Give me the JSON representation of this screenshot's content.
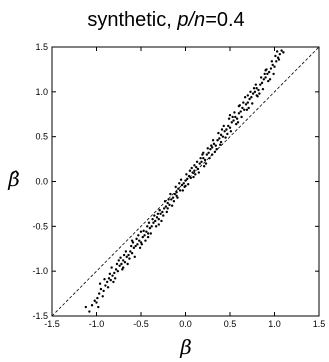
{
  "chart_data": {
    "type": "scatter",
    "title_prefix": "synthetic, ",
    "title_var": "p/n",
    "title_suffix": "=0.4",
    "xlabel": "β",
    "ylabel": "β̂",
    "xlim": [
      -1.5,
      1.5
    ],
    "ylim": [
      -1.5,
      1.5
    ],
    "xticks": [
      -1.5,
      -1.0,
      -0.5,
      0.0,
      0.5,
      1.0,
      1.5
    ],
    "yticks": [
      -1.5,
      -1.0,
      -0.5,
      0.0,
      0.5,
      1.0,
      1.5
    ],
    "xtick_labels": [
      "-1.5",
      "-1.0",
      "-0.5",
      "0.0",
      "0.5",
      "1.0",
      "1.5"
    ],
    "ytick_labels": [
      "-1.5",
      "-1.0",
      "-0.5",
      "0.0",
      "0.5",
      "1.0",
      "1.5"
    ],
    "grid": false,
    "reference_line": {
      "style": "dashed",
      "from": [
        -1.5,
        -1.5
      ],
      "to": [
        1.5,
        1.5
      ]
    },
    "point_color": "#000000",
    "points": [
      [
        -1.08,
        -1.45
      ],
      [
        -1.05,
        -1.38
      ],
      [
        -1.02,
        -1.33
      ],
      [
        -0.99,
        -1.3
      ],
      [
        -0.97,
        -1.25
      ],
      [
        -0.95,
        -1.2
      ],
      [
        -0.92,
        -1.22
      ],
      [
        -0.9,
        -1.16
      ],
      [
        -0.88,
        -1.12
      ],
      [
        -0.86,
        -1.08
      ],
      [
        -0.84,
        -1.1
      ],
      [
        -0.82,
        -1.05
      ],
      [
        -0.8,
        -1.02
      ],
      [
        -0.78,
        -0.98
      ],
      [
        -0.76,
        -1.0
      ],
      [
        -0.74,
        -0.94
      ],
      [
        -0.72,
        -0.92
      ],
      [
        -0.7,
        -0.88
      ],
      [
        -0.68,
        -0.9
      ],
      [
        -0.66,
        -0.84
      ],
      [
        -0.64,
        -0.82
      ],
      [
        -0.62,
        -0.78
      ],
      [
        -0.6,
        -0.8
      ],
      [
        -0.58,
        -0.74
      ],
      [
        -0.56,
        -0.72
      ],
      [
        -0.54,
        -0.7
      ],
      [
        -0.52,
        -0.66
      ],
      [
        -0.5,
        -0.68
      ],
      [
        -0.48,
        -0.62
      ],
      [
        -0.46,
        -0.6
      ],
      [
        -0.44,
        -0.56
      ],
      [
        -0.42,
        -0.58
      ],
      [
        -0.4,
        -0.52
      ],
      [
        -0.38,
        -0.5
      ],
      [
        -0.36,
        -0.46
      ],
      [
        -0.34,
        -0.44
      ],
      [
        -0.32,
        -0.4
      ],
      [
        -0.3,
        -0.42
      ],
      [
        -0.28,
        -0.36
      ],
      [
        -0.26,
        -0.34
      ],
      [
        -0.24,
        -0.3
      ],
      [
        -0.22,
        -0.28
      ],
      [
        -0.2,
        -0.24
      ],
      [
        -0.18,
        -0.26
      ],
      [
        -0.16,
        -0.2
      ],
      [
        -0.14,
        -0.18
      ],
      [
        -0.12,
        -0.14
      ],
      [
        -0.1,
        -0.12
      ],
      [
        -0.08,
        -0.08
      ],
      [
        -0.06,
        -0.1
      ],
      [
        -0.04,
        -0.04
      ],
      [
        -0.02,
        -0.02
      ],
      [
        0.0,
        0.01
      ],
      [
        0.02,
        0.03
      ],
      [
        0.04,
        0.06
      ],
      [
        0.06,
        0.04
      ],
      [
        0.08,
        0.1
      ],
      [
        0.1,
        0.12
      ],
      [
        0.12,
        0.16
      ],
      [
        0.14,
        0.14
      ],
      [
        0.16,
        0.2
      ],
      [
        0.18,
        0.22
      ],
      [
        0.2,
        0.26
      ],
      [
        0.22,
        0.24
      ],
      [
        0.24,
        0.3
      ],
      [
        0.26,
        0.32
      ],
      [
        0.28,
        0.36
      ],
      [
        0.3,
        0.38
      ],
      [
        0.32,
        0.42
      ],
      [
        0.34,
        0.4
      ],
      [
        0.36,
        0.46
      ],
      [
        0.38,
        0.48
      ],
      [
        0.4,
        0.52
      ],
      [
        0.42,
        0.5
      ],
      [
        0.44,
        0.56
      ],
      [
        0.46,
        0.58
      ],
      [
        0.48,
        0.62
      ],
      [
        0.5,
        0.6
      ],
      [
        0.52,
        0.66
      ],
      [
        0.54,
        0.68
      ],
      [
        0.56,
        0.72
      ],
      [
        0.58,
        0.7
      ],
      [
        0.6,
        0.76
      ],
      [
        0.62,
        0.78
      ],
      [
        0.64,
        0.82
      ],
      [
        0.66,
        0.8
      ],
      [
        0.68,
        0.86
      ],
      [
        0.7,
        0.88
      ],
      [
        0.72,
        0.92
      ],
      [
        0.74,
        0.94
      ],
      [
        0.76,
        0.98
      ],
      [
        0.78,
        1.0
      ],
      [
        0.8,
        1.04
      ],
      [
        0.82,
        1.02
      ],
      [
        0.84,
        1.08
      ],
      [
        0.86,
        1.1
      ],
      [
        0.88,
        1.14
      ],
      [
        0.9,
        1.16
      ],
      [
        0.92,
        1.2
      ],
      [
        0.94,
        1.22
      ],
      [
        0.96,
        1.26
      ],
      [
        0.98,
        1.3
      ],
      [
        1.0,
        1.28
      ],
      [
        1.02,
        1.34
      ],
      [
        1.04,
        1.38
      ],
      [
        1.06,
        1.42
      ],
      [
        1.08,
        1.46
      ],
      [
        1.1,
        1.44
      ],
      [
        -0.98,
        -1.4
      ],
      [
        -0.93,
        -1.28
      ],
      [
        -0.87,
        -1.18
      ],
      [
        -0.85,
        -1.03
      ],
      [
        -0.79,
        -1.08
      ],
      [
        -0.75,
        -0.88
      ],
      [
        -0.71,
        -0.98
      ],
      [
        -0.69,
        -0.82
      ],
      [
        -0.65,
        -0.92
      ],
      [
        -0.61,
        -0.72
      ],
      [
        -0.57,
        -0.84
      ],
      [
        -0.55,
        -0.64
      ],
      [
        -0.51,
        -0.74
      ],
      [
        -0.47,
        -0.55
      ],
      [
        -0.45,
        -0.66
      ],
      [
        -0.41,
        -0.46
      ],
      [
        -0.39,
        -0.58
      ],
      [
        -0.35,
        -0.38
      ],
      [
        -0.33,
        -0.5
      ],
      [
        -0.29,
        -0.32
      ],
      [
        -0.27,
        -0.44
      ],
      [
        -0.23,
        -0.22
      ],
      [
        -0.21,
        -0.34
      ],
      [
        -0.17,
        -0.14
      ],
      [
        -0.15,
        -0.27
      ],
      [
        -0.11,
        -0.06
      ],
      [
        -0.09,
        -0.18
      ],
      [
        -0.05,
        0.02
      ],
      [
        -0.03,
        -0.1
      ],
      [
        0.01,
        0.08
      ],
      [
        0.03,
        -0.03
      ],
      [
        0.07,
        0.15
      ],
      [
        0.09,
        0.05
      ],
      [
        0.13,
        0.22
      ],
      [
        0.15,
        0.1
      ],
      [
        0.19,
        0.3
      ],
      [
        0.21,
        0.17
      ],
      [
        0.25,
        0.37
      ],
      [
        0.27,
        0.26
      ],
      [
        0.31,
        0.46
      ],
      [
        0.33,
        0.33
      ],
      [
        0.37,
        0.54
      ],
      [
        0.39,
        0.41
      ],
      [
        0.43,
        0.62
      ],
      [
        0.45,
        0.49
      ],
      [
        0.49,
        0.7
      ],
      [
        0.51,
        0.56
      ],
      [
        0.55,
        0.77
      ],
      [
        0.57,
        0.64
      ],
      [
        0.61,
        0.85
      ],
      [
        0.63,
        0.72
      ],
      [
        0.67,
        0.94
      ],
      [
        0.69,
        0.8
      ],
      [
        0.73,
        1.0
      ],
      [
        0.75,
        0.87
      ],
      [
        0.79,
        1.08
      ],
      [
        0.81,
        0.95
      ],
      [
        0.85,
        1.16
      ],
      [
        0.87,
        1.03
      ],
      [
        0.91,
        1.25
      ],
      [
        0.93,
        1.12
      ],
      [
        0.97,
        1.34
      ],
      [
        0.99,
        1.2
      ],
      [
        1.03,
        1.45
      ],
      [
        -1.12,
        -1.4
      ],
      [
        -1.0,
        -1.35
      ],
      [
        -0.96,
        -1.14
      ],
      [
        -0.91,
        -1.09
      ],
      [
        -0.83,
        -0.96
      ],
      [
        -0.77,
        -0.92
      ],
      [
        -0.73,
        -0.85
      ],
      [
        -0.67,
        -0.78
      ],
      [
        -0.63,
        -0.86
      ],
      [
        -0.59,
        -0.68
      ],
      [
        -0.53,
        -0.6
      ],
      [
        -0.49,
        -0.7
      ],
      [
        -0.43,
        -0.5
      ],
      [
        -0.37,
        -0.42
      ],
      [
        -0.31,
        -0.36
      ],
      [
        -0.25,
        -0.38
      ],
      [
        -0.19,
        -0.2
      ],
      [
        -0.13,
        -0.22
      ],
      [
        -0.07,
        -0.02
      ],
      [
        -0.01,
        -0.06
      ],
      [
        0.05,
        0.12
      ],
      [
        0.11,
        0.08
      ],
      [
        0.17,
        0.26
      ],
      [
        0.23,
        0.2
      ],
      [
        0.29,
        0.4
      ],
      [
        0.35,
        0.36
      ],
      [
        0.41,
        0.58
      ],
      [
        0.47,
        0.53
      ],
      [
        0.53,
        0.72
      ],
      [
        0.59,
        0.66
      ],
      [
        0.65,
        0.88
      ],
      [
        0.71,
        0.82
      ],
      [
        0.77,
        1.04
      ],
      [
        0.83,
        0.98
      ],
      [
        0.89,
        1.2
      ],
      [
        0.95,
        1.14
      ],
      [
        1.01,
        1.4
      ],
      [
        1.05,
        1.36
      ],
      [
        -0.81,
        -1.12
      ],
      [
        -0.6,
        -0.66
      ],
      [
        -0.42,
        -0.62
      ],
      [
        -0.2,
        -0.3
      ],
      [
        0.0,
        -0.05
      ],
      [
        0.2,
        0.32
      ],
      [
        0.4,
        0.44
      ],
      [
        0.6,
        0.84
      ],
      [
        0.8,
        0.96
      ],
      [
        -0.3,
        -0.48
      ],
      [
        0.3,
        0.3
      ],
      [
        0.1,
        0.18
      ],
      [
        -0.1,
        -0.16
      ],
      [
        0.5,
        0.74
      ],
      [
        -0.5,
        -0.56
      ],
      [
        0.7,
        0.96
      ],
      [
        -0.7,
        -0.96
      ],
      [
        0.9,
        1.24
      ]
    ]
  }
}
